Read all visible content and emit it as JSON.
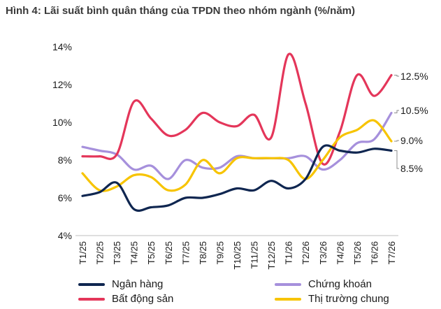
{
  "chart_data": {
    "type": "line",
    "title": "Hình 4: Lãi suất bình quân tháng của TPDN theo nhóm ngành (%/năm)",
    "categories": [
      "T1/25",
      "T2/25",
      "T3/25",
      "T4/25",
      "T5/25",
      "T6/25",
      "T7/25",
      "T8/25",
      "T9/25",
      "T10/25",
      "T11/25",
      "T12/25",
      "T1/26",
      "T2/26",
      "T3/26",
      "T4/26",
      "T5/26",
      "T6/26",
      "T7/26"
    ],
    "ylim": [
      4,
      14
    ],
    "yticks": [
      "4%",
      "6%",
      "8%",
      "10%",
      "12%",
      "14%"
    ],
    "grid": false,
    "legend_position": "bottom",
    "series": [
      {
        "name": "Ngân hàng",
        "color": "#0f2650",
        "values": [
          6.1,
          6.3,
          6.8,
          5.4,
          5.5,
          5.6,
          6.0,
          6.0,
          6.2,
          6.5,
          6.4,
          6.9,
          6.5,
          7.0,
          8.7,
          8.5,
          8.4,
          8.6,
          8.5
        ],
        "end_label": "8.5%"
      },
      {
        "name": "Chứng khoán",
        "color": "#a690dc",
        "values": [
          8.7,
          8.5,
          8.3,
          7.5,
          7.7,
          7.0,
          8.0,
          7.6,
          7.6,
          8.2,
          8.1,
          8.1,
          8.1,
          8.2,
          7.5,
          8.0,
          8.9,
          9.1,
          10.5
        ],
        "end_label": "10.5%"
      },
      {
        "name": "Bất động sản",
        "color": "#e4365a",
        "values": [
          8.2,
          8.2,
          8.3,
          11.1,
          10.2,
          9.3,
          9.6,
          10.5,
          10.0,
          9.8,
          10.4,
          9.2,
          13.6,
          11.0,
          7.8,
          9.5,
          12.5,
          11.4,
          12.5
        ],
        "end_label": "12.5%"
      },
      {
        "name": "Thị trường chung",
        "color": "#f7c400",
        "values": [
          7.3,
          6.4,
          6.6,
          7.2,
          7.1,
          6.4,
          6.7,
          8.0,
          7.3,
          8.1,
          8.1,
          8.1,
          8.0,
          7.0,
          8.0,
          9.2,
          9.6,
          10.1,
          9.0
        ],
        "end_label": "9.0%"
      }
    ]
  }
}
